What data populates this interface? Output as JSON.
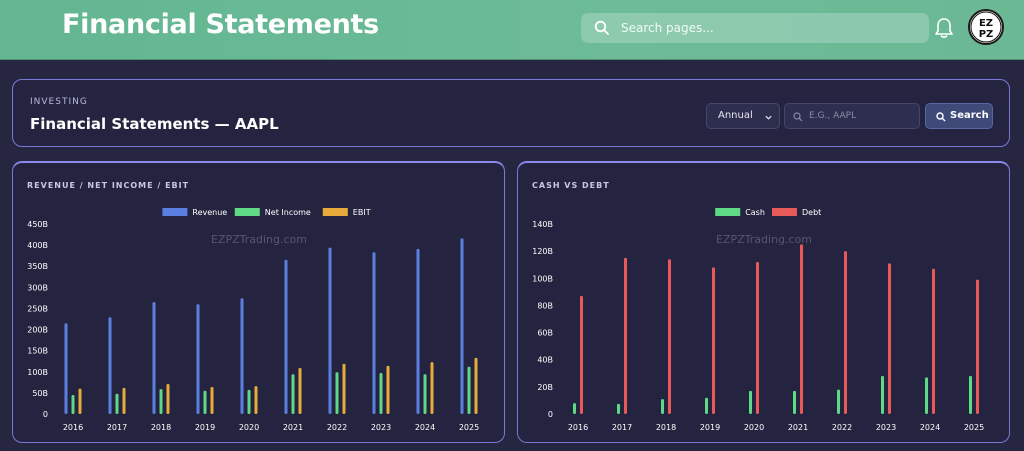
{
  "header": {
    "title": "Financial Statements",
    "search_placeholder": "Search pages...",
    "avatar_text": [
      "EZ",
      "PZ"
    ]
  },
  "page": {
    "eyebrow": "INVESTING",
    "title": "Financial Statements — AAPL",
    "period_selected": "Annual",
    "ticker_placeholder": "E.G., AAPL",
    "search_label": "Search"
  },
  "colors": {
    "accent_green": "#65b893",
    "revenue": "#5b7fe0",
    "net_income": "#5fd985",
    "ebit": "#e8aa3a",
    "cash": "#5fd985",
    "debt": "#e85a5a"
  },
  "chart_data": [
    {
      "type": "bar",
      "title": "REVENUE / NET INCOME / EBIT",
      "watermark": "EZPZTrading.com",
      "categories": [
        "2016",
        "2017",
        "2018",
        "2019",
        "2020",
        "2021",
        "2022",
        "2023",
        "2024",
        "2025"
      ],
      "series": [
        {
          "name": "Revenue",
          "color": "#5b7fe0",
          "values": [
            215,
            229,
            265,
            260,
            274,
            365,
            394,
            383,
            391,
            416
          ]
        },
        {
          "name": "Net Income",
          "color": "#5fd985",
          "values": [
            45,
            48,
            59,
            55,
            57,
            94,
            99,
            97,
            94,
            112
          ]
        },
        {
          "name": "EBIT",
          "color": "#e8aa3a",
          "values": [
            60,
            62,
            71,
            64,
            66,
            109,
            119,
            114,
            123,
            133
          ]
        }
      ],
      "yticks": [
        "0",
        "50B",
        "100B",
        "150B",
        "200B",
        "250B",
        "300B",
        "350B",
        "400B",
        "450B"
      ],
      "ylim": [
        0,
        450
      ],
      "legend": "top-center",
      "grid": false
    },
    {
      "type": "bar",
      "title": "CASH VS DEBT",
      "watermark": "EZPZTrading.com",
      "categories": [
        "2016",
        "2017",
        "2018",
        "2019",
        "2020",
        "2021",
        "2022",
        "2023",
        "2024",
        "2025"
      ],
      "series": [
        {
          "name": "Cash",
          "color": "#5fd985",
          "values": [
            8,
            7.5,
            11,
            12,
            17,
            17,
            18,
            28,
            27,
            28
          ]
        },
        {
          "name": "Debt",
          "color": "#e85a5a",
          "values": [
            87,
            115,
            114,
            108,
            112,
            125,
            120,
            111,
            107,
            99
          ]
        }
      ],
      "yticks": [
        "0",
        "20B",
        "40B",
        "60B",
        "80B",
        "100B",
        "120B",
        "140B"
      ],
      "ylim": [
        0,
        140
      ],
      "legend": "top-center",
      "grid": false
    }
  ]
}
